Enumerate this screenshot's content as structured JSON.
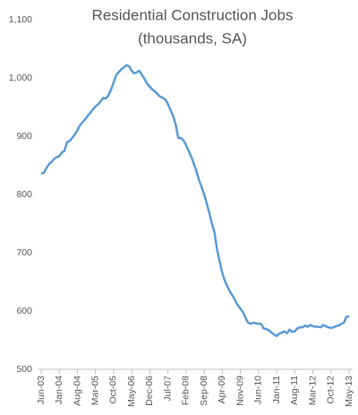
{
  "chart_data": {
    "type": "line",
    "title": "Residential Construction Jobs",
    "subtitle": "(thousands, SA)",
    "categories": [
      "Jun-03",
      null,
      null,
      null,
      null,
      null,
      null,
      "Jan-04",
      null,
      null,
      null,
      null,
      null,
      null,
      "Aug-04",
      null,
      null,
      null,
      null,
      null,
      null,
      "Mar-05",
      null,
      null,
      null,
      null,
      null,
      null,
      "Oct-05",
      null,
      null,
      null,
      null,
      null,
      null,
      "May-06",
      null,
      null,
      null,
      null,
      null,
      null,
      "Dec-06",
      null,
      null,
      null,
      null,
      null,
      null,
      "Jul-07",
      null,
      null,
      null,
      null,
      null,
      null,
      "Feb-08",
      null,
      null,
      null,
      null,
      null,
      null,
      "Sep-08",
      null,
      null,
      null,
      null,
      null,
      null,
      "Apr-09",
      null,
      null,
      null,
      null,
      null,
      null,
      "Nov-09",
      null,
      null,
      null,
      null,
      null,
      null,
      "Jun-10",
      null,
      null,
      null,
      null,
      null,
      null,
      "Jan-11",
      null,
      null,
      null,
      null,
      null,
      null,
      "Aug-11",
      null,
      null,
      null,
      null,
      null,
      null,
      "Mar-12",
      null,
      null,
      null,
      null,
      null,
      null,
      "Oct-12",
      null,
      null,
      null,
      null,
      null,
      null,
      "May-13"
    ],
    "series": [
      {
        "color": "#5b9bd5",
        "values": [
          836,
          837,
          845,
          852,
          856,
          861,
          864,
          866,
          872,
          875,
          890,
          892,
          897,
          903,
          910,
          919,
          924,
          929,
          935,
          940,
          946,
          951,
          955,
          960,
          966,
          965,
          970,
          980,
          992,
          1005,
          1010,
          1015,
          1018,
          1022,
          1020,
          1012,
          1008,
          1010,
          1012,
          1005,
          998,
          990,
          985,
          980,
          977,
          972,
          968,
          966,
          963,
          955,
          945,
          935,
          920,
          897,
          897,
          893,
          885,
          875,
          865,
          853,
          840,
          825,
          813,
          800,
          785,
          768,
          750,
          735,
          705,
          685,
          665,
          652,
          642,
          633,
          626,
          618,
          610,
          604,
          598,
          588,
          580,
          578,
          580,
          579,
          578,
          578,
          570,
          569,
          567,
          563,
          560,
          557,
          561,
          563,
          565,
          562,
          568,
          564,
          565,
          570,
          572,
          572,
          575,
          573,
          576,
          574,
          573,
          573,
          572,
          576,
          574,
          572,
          571,
          572,
          574,
          575,
          578,
          580,
          590,
          591
        ]
      }
    ],
    "ylim": [
      500,
      1100
    ],
    "yticks": [
      500,
      600,
      700,
      800,
      900,
      {
        "value": 1000,
        "label": "1,000"
      },
      {
        "value": 1100,
        "label": "1,100"
      }
    ]
  }
}
